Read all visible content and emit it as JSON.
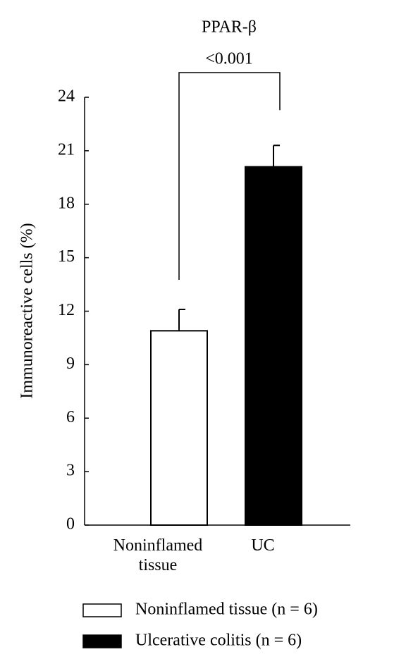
{
  "chart_data": {
    "type": "bar",
    "title": "PPAR-β",
    "annotation": "<0.001",
    "y_label": "Immunoreactive cells (%)",
    "categories": [
      "Noninflamed tissue",
      "UC"
    ],
    "values": [
      10.9,
      20.1
    ],
    "errors": [
      1.2,
      1.2
    ],
    "colors": [
      "#ffffff",
      "#000000"
    ],
    "legend": [
      "Noninflamed tissue (n = 6)",
      "Ulcerative colitis (n = 6)"
    ],
    "ylim": [
      0,
      24
    ],
    "yticks": [
      0,
      3,
      6,
      9,
      12,
      15,
      18,
      21,
      24
    ]
  }
}
